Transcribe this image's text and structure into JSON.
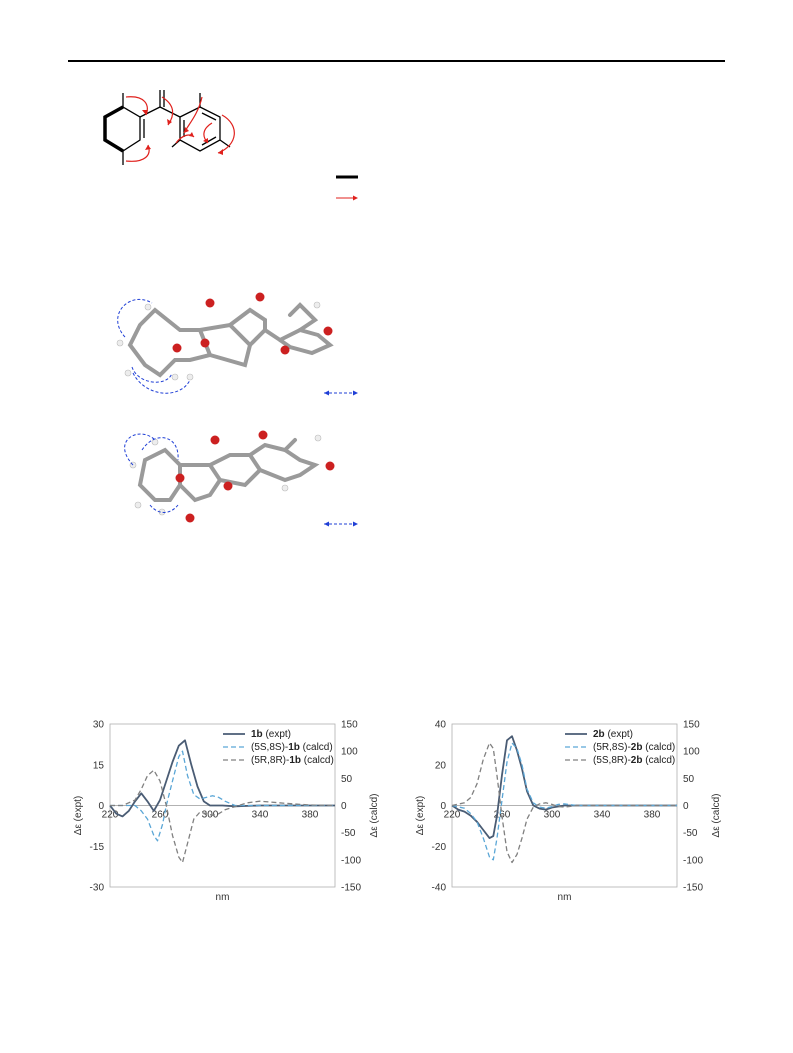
{
  "figure_top": {
    "legend_line_1": "",
    "legend_line_2": ""
  },
  "colors": {
    "hmbc_arrow": "#e0201c",
    "cosy_bond": "#000000",
    "noesy_arrow": "#1f3fd6",
    "carbon": "#8c8c8c",
    "oxygen": "#cc2020",
    "hydrogen": "#f2f2f2",
    "expt_line": "#4a5c74",
    "calcd_blue": "#5aa6d6",
    "calcd_gray": "#808080"
  },
  "chart_data": [
    {
      "type": "line",
      "xlabel": "nm",
      "ylabel_left": "Δε (expt)",
      "ylabel_right": "Δε (calcd)",
      "xlim": [
        220,
        400
      ],
      "xticks": [
        "220",
        "260",
        "300",
        "340",
        "380"
      ],
      "ylim_left": [
        -30,
        30
      ],
      "yticks_left": [
        "30",
        "15",
        "0",
        "-15",
        "-30"
      ],
      "ylim_right": [
        -150,
        150
      ],
      "yticks_right": [
        "150",
        "100",
        "50",
        "0",
        "-50",
        "-100",
        "-150"
      ],
      "legend": [
        {
          "bold": "1b",
          "pre": "",
          "post": " (expt)"
        },
        {
          "bold": "1b",
          "pre": "(5S,8S)-",
          "post": " (calcd)"
        },
        {
          "bold": "1b",
          "pre": "(5R,8R)-",
          "post": " (calcd)"
        }
      ],
      "legend_position": "top-right",
      "series": [
        {
          "axis": "left",
          "style": "solid",
          "color": "#4a5c74",
          "x": [
            220,
            225,
            230,
            235,
            240,
            245,
            250,
            255,
            260,
            265,
            270,
            275,
            280,
            285,
            290,
            295,
            300,
            310,
            320,
            340,
            360,
            380,
            400
          ],
          "y": [
            0,
            -3,
            -4,
            -2,
            1.5,
            4.5,
            1.5,
            -2,
            2,
            9,
            16,
            22,
            24,
            15,
            7,
            1.5,
            0,
            0,
            -0.3,
            0,
            0,
            0,
            0
          ]
        },
        {
          "axis": "right",
          "style": "dashed",
          "color": "#5aa6d6",
          "x": [
            220,
            230,
            240,
            245,
            250,
            255,
            258,
            262,
            265,
            270,
            275,
            278,
            282,
            287,
            292,
            297,
            302,
            307,
            312,
            320,
            340,
            360,
            380,
            400
          ],
          "y": [
            0,
            0,
            0,
            -10,
            -25,
            -55,
            -65,
            -35,
            0,
            45,
            90,
            100,
            55,
            20,
            12,
            15,
            18,
            15,
            8,
            0,
            0,
            0,
            0,
            0
          ]
        },
        {
          "axis": "right",
          "style": "dashed",
          "color": "#808080",
          "x": [
            220,
            230,
            240,
            245,
            250,
            255,
            260,
            265,
            270,
            275,
            278,
            282,
            287,
            292,
            297,
            302,
            307,
            312,
            320,
            330,
            340,
            360,
            380,
            400
          ],
          "y": [
            0,
            0,
            10,
            30,
            55,
            65,
            45,
            0,
            -55,
            -95,
            -105,
            -70,
            -25,
            -12,
            -15,
            -18,
            -15,
            -8,
            -2,
            5,
            8,
            4,
            1,
            0
          ]
        }
      ]
    },
    {
      "type": "line",
      "xlabel": "nm",
      "ylabel_left": "Δε (expt)",
      "ylabel_right": "Δε (calcd)",
      "xlim": [
        220,
        400
      ],
      "xticks": [
        "220",
        "260",
        "300",
        "340",
        "380"
      ],
      "ylim_left": [
        -40,
        40
      ],
      "yticks_left": [
        "40",
        "20",
        "0",
        "-20",
        "-40"
      ],
      "ylim_right": [
        -150,
        150
      ],
      "yticks_right": [
        "150",
        "100",
        "50",
        "0",
        "-50",
        "-100",
        "-150"
      ],
      "legend": [
        {
          "bold": "2b",
          "pre": "",
          "post": " (expt)"
        },
        {
          "bold": "2b",
          "pre": "(5R,8S)-",
          "post": " (calcd)"
        },
        {
          "bold": "2b",
          "pre": "(5S,8R)-",
          "post": " (calcd)"
        }
      ],
      "legend_position": "top-right",
      "series": [
        {
          "axis": "left",
          "style": "solid",
          "color": "#4a5c74",
          "x": [
            220,
            225,
            230,
            235,
            240,
            245,
            250,
            253,
            256,
            260,
            264,
            268,
            272,
            276,
            280,
            285,
            290,
            295,
            300,
            310,
            320,
            340,
            360,
            380,
            400
          ],
          "y": [
            0,
            -2,
            -3,
            -5,
            -8,
            -12,
            -16,
            -15,
            -5,
            15,
            32,
            34,
            27,
            18,
            7,
            0,
            -1.5,
            -2,
            -1,
            0,
            0,
            0,
            0,
            0,
            0
          ]
        },
        {
          "axis": "right",
          "style": "dashed",
          "color": "#5aa6d6",
          "x": [
            220,
            230,
            235,
            240,
            245,
            250,
            253,
            256,
            260,
            264,
            268,
            272,
            276,
            280,
            285,
            290,
            295,
            300,
            305,
            310,
            320,
            340,
            360,
            380,
            400
          ],
          "y": [
            0,
            -5,
            -15,
            -30,
            -60,
            -95,
            -100,
            -60,
            10,
            80,
            115,
            105,
            75,
            30,
            5,
            -3,
            -5,
            -2,
            2,
            3,
            0,
            0,
            0,
            0,
            0
          ]
        },
        {
          "axis": "right",
          "style": "dashed",
          "color": "#808080",
          "x": [
            220,
            230,
            235,
            240,
            245,
            250,
            253,
            256,
            260,
            264,
            268,
            272,
            276,
            280,
            285,
            290,
            295,
            300,
            305,
            310,
            320,
            340,
            360,
            380,
            400
          ],
          "y": [
            0,
            5,
            15,
            40,
            85,
            115,
            105,
            55,
            -20,
            -85,
            -105,
            -90,
            -60,
            -25,
            -3,
            3,
            5,
            2,
            -2,
            -3,
            0,
            0,
            0,
            0,
            0
          ]
        }
      ]
    }
  ]
}
